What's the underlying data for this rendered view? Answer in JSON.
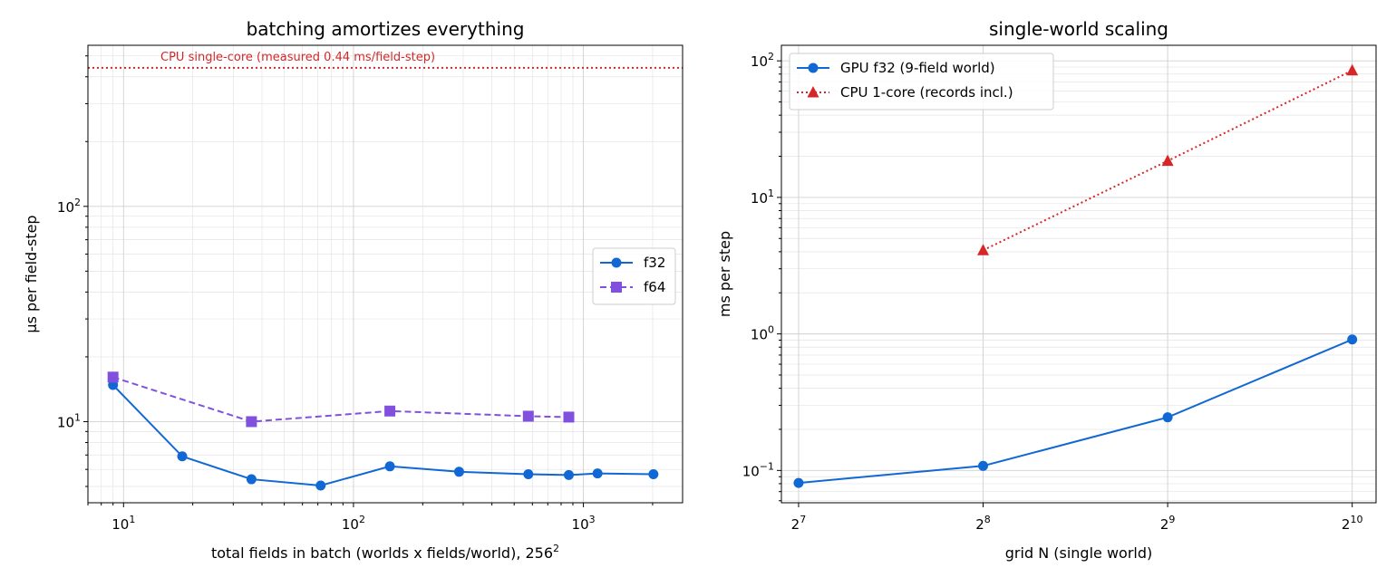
{
  "chart_data": [
    {
      "type": "line",
      "title": "batching amortizes everything",
      "xlabel": "total fields in batch (worlds x fields/world), 256",
      "xlabel_sup": "2",
      "ylabel": "µs per field-step",
      "xscale": "log",
      "yscale": "log",
      "xlim": [
        7,
        2700
      ],
      "ylim": [
        4.2,
        560
      ],
      "grid": true,
      "legend_position": "center-right",
      "x_ticks": [
        {
          "value": 10,
          "base": "10",
          "exp": "1"
        },
        {
          "value": 100,
          "base": "10",
          "exp": "2"
        },
        {
          "value": 1000,
          "base": "10",
          "exp": "3"
        }
      ],
      "y_ticks": [
        {
          "value": 10,
          "base": "10",
          "exp": "1"
        },
        {
          "value": 100,
          "base": "10",
          "exp": "2"
        }
      ],
      "hline": {
        "value": 440,
        "label": "CPU single-core (measured 0.44 ms/field-step)",
        "color": "#d62728"
      },
      "series": [
        {
          "name": "f32",
          "color": "#1168d4",
          "marker": "circle",
          "dash": "solid",
          "x": [
            9,
            18,
            36,
            72,
            144,
            288,
            576,
            864,
            1152,
            2016
          ],
          "y": [
            14.8,
            6.9,
            5.4,
            5.05,
            6.2,
            5.85,
            5.7,
            5.65,
            5.75,
            5.7
          ]
        },
        {
          "name": "f64",
          "color": "#8250df",
          "marker": "square",
          "dash": "dashed",
          "x": [
            9,
            36,
            144,
            576,
            864
          ],
          "y": [
            16.1,
            10.0,
            11.2,
            10.6,
            10.5
          ]
        }
      ]
    },
    {
      "type": "line",
      "title": "single-world scaling",
      "xlabel": "grid N (single world)",
      "ylabel": "ms per step",
      "xscale": "log2",
      "yscale": "log",
      "xlim": [
        120,
        1120
      ],
      "ylim": [
        0.058,
        130
      ],
      "grid": true,
      "legend_position": "upper-left",
      "x_ticks": [
        {
          "value": 128,
          "base": "2",
          "exp": "7"
        },
        {
          "value": 256,
          "base": "2",
          "exp": "8"
        },
        {
          "value": 512,
          "base": "2",
          "exp": "9"
        },
        {
          "value": 1024,
          "base": "2",
          "exp": "10"
        }
      ],
      "y_ticks": [
        {
          "value": 0.1,
          "base": "10",
          "exp": "−1"
        },
        {
          "value": 1,
          "base": "10",
          "exp": "0"
        },
        {
          "value": 10,
          "base": "10",
          "exp": "1"
        },
        {
          "value": 100,
          "base": "10",
          "exp": "2"
        }
      ],
      "series": [
        {
          "name": "GPU f32 (9-field world)",
          "color": "#1168d4",
          "marker": "circle",
          "dash": "solid",
          "x": [
            128,
            256,
            512,
            1024
          ],
          "y": [
            0.081,
            0.108,
            0.245,
            0.91
          ]
        },
        {
          "name": "CPU 1-core (records incl.)",
          "color": "#d62728",
          "marker": "triangle",
          "dash": "dotted",
          "x": [
            256,
            512,
            1024
          ],
          "y": [
            4.1,
            18.5,
            85
          ]
        }
      ]
    }
  ]
}
